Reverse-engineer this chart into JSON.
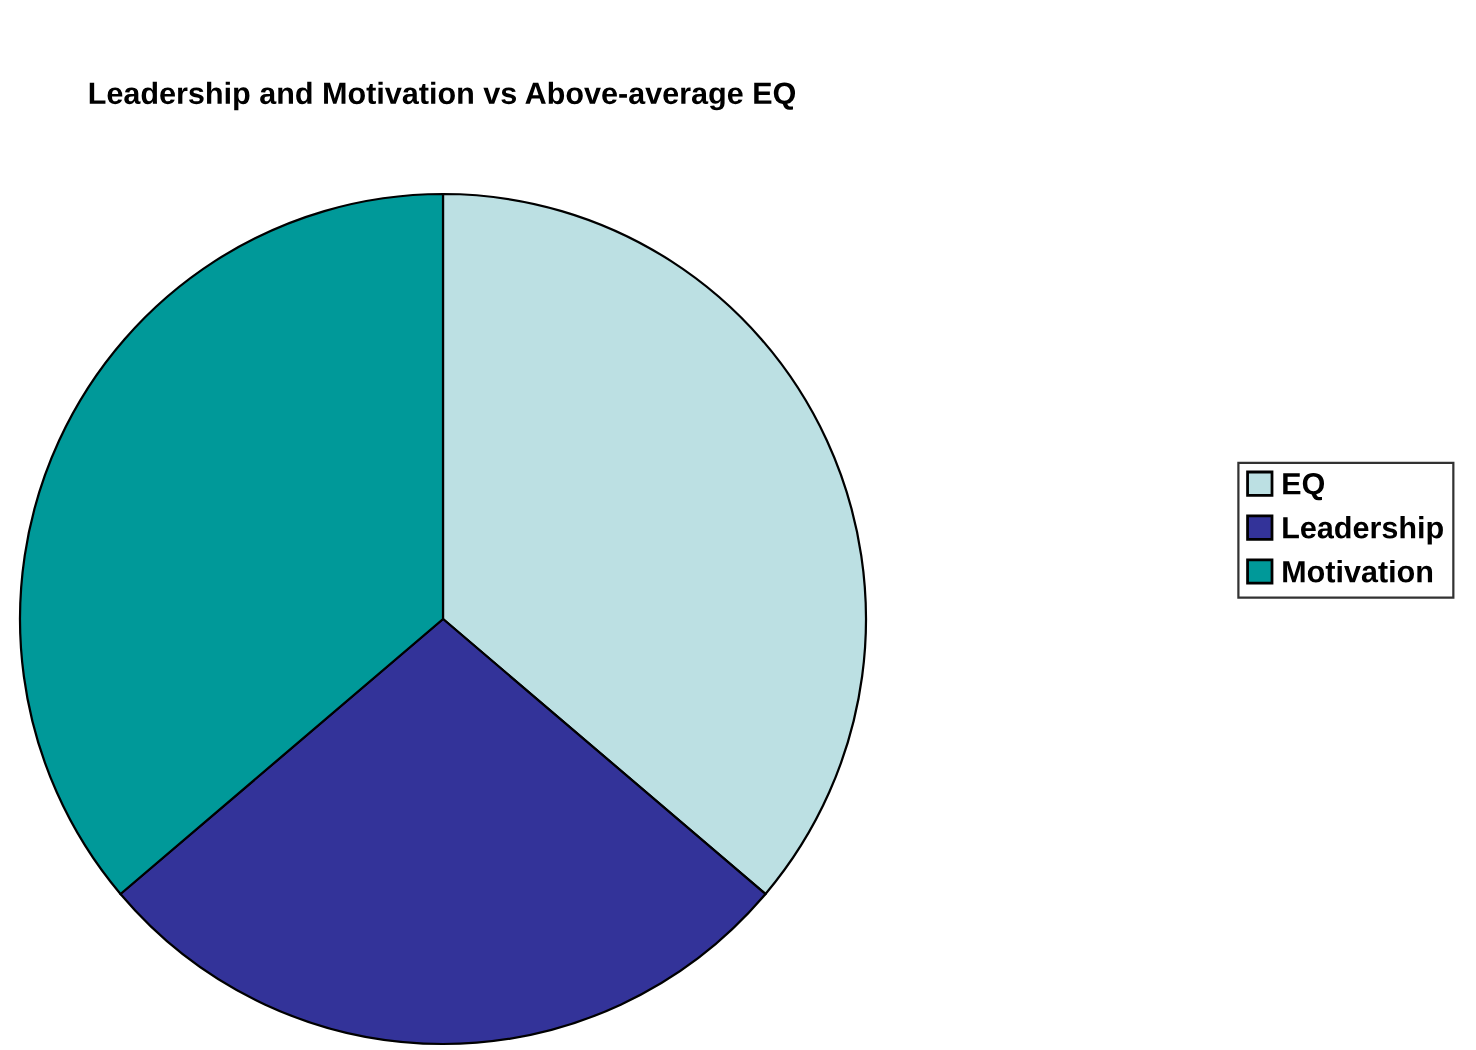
{
  "chart_data": {
    "type": "pie",
    "title": "Leadership and Motivation vs Above-average EQ",
    "categories": [
      "EQ",
      "Leadership",
      "Motivation"
    ],
    "values": [
      36.2,
      27.6,
      36.2
    ],
    "colors": [
      "#bce0e3",
      "#333399",
      "#009999"
    ],
    "legend": "right"
  }
}
